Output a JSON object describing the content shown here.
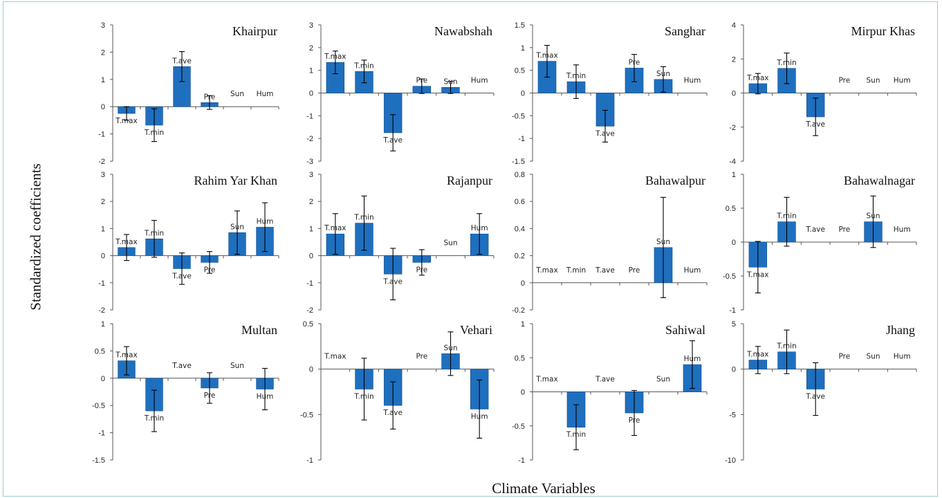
{
  "ylabel": "Standardized coefficients",
  "xlabel": "Climate Variables",
  "colors": {
    "bar": "#1f6fbf",
    "bar_edge": "#15508c",
    "axis": "#555555",
    "error": "#000000",
    "frame": "#8fd3cf"
  },
  "variables": [
    "T.max",
    "T.min",
    "T.ave",
    "Pre",
    "Sun",
    "Hum"
  ],
  "chart_data": [
    {
      "type": "bar",
      "title": "Khairpur",
      "categories": [
        "T.max",
        "T.min",
        "T.ave",
        "Pre",
        "Sun",
        "Hum"
      ],
      "values": [
        -0.25,
        -0.68,
        1.47,
        0.15,
        null,
        null
      ],
      "err": [
        0.25,
        0.6,
        0.55,
        0.25,
        null,
        null
      ],
      "ylim": [
        -2,
        3
      ],
      "yticks": [
        -2,
        -1,
        0,
        1,
        2,
        3
      ],
      "grid": false,
      "legend": "none"
    },
    {
      "type": "bar",
      "title": "Nawabshah",
      "categories": [
        "T.max",
        "T.min",
        "T.ave",
        "Pre",
        "Sun",
        "Hum"
      ],
      "values": [
        1.35,
        0.95,
        -1.75,
        0.3,
        0.25,
        null
      ],
      "err": [
        0.5,
        0.5,
        0.8,
        0.32,
        0.27,
        null
      ],
      "ylim": [
        -3,
        3
      ],
      "yticks": [
        -3,
        -2,
        -1,
        0,
        1,
        2,
        3
      ],
      "grid": false,
      "legend": "none"
    },
    {
      "type": "bar",
      "title": "Sanghar",
      "categories": [
        "T.max",
        "T.min",
        "T.ave",
        "Pre",
        "Sun",
        "Hum"
      ],
      "values": [
        0.7,
        0.25,
        -0.73,
        0.55,
        0.3,
        null
      ],
      "err": [
        0.35,
        0.37,
        0.35,
        0.3,
        0.28,
        null
      ],
      "ylim": [
        -1.5,
        1.5
      ],
      "yticks": [
        -1.5,
        -1,
        -0.5,
        0,
        0.5,
        1,
        1.5
      ],
      "grid": false,
      "legend": "none"
    },
    {
      "type": "bar",
      "title": "Mirpur Khas",
      "categories": [
        "T.max",
        "T.min",
        "T.ave",
        "Pre",
        "Sun",
        "Hum"
      ],
      "values": [
        0.55,
        1.45,
        -1.4,
        null,
        null,
        null
      ],
      "err": [
        0.6,
        0.9,
        1.1,
        null,
        null,
        null
      ],
      "ylim": [
        -4,
        4
      ],
      "yticks": [
        -4,
        -2,
        0,
        2,
        4
      ],
      "grid": false,
      "legend": "none"
    },
    {
      "type": "bar",
      "title": "Rahim Yar Khan",
      "categories": [
        "T.max",
        "T.min",
        "T.ave",
        "Pre",
        "Sun",
        "Hum"
      ],
      "values": [
        0.3,
        0.62,
        -0.48,
        -0.25,
        0.85,
        1.05
      ],
      "err": [
        0.48,
        0.68,
        0.58,
        0.4,
        0.8,
        0.9
      ],
      "ylim": [
        -2,
        3
      ],
      "yticks": [
        -2,
        -1,
        0,
        1,
        2,
        3
      ],
      "grid": false,
      "legend": "none"
    },
    {
      "type": "bar",
      "title": "Rajanpur",
      "categories": [
        "T.max",
        "T.min",
        "T.ave",
        "Pre",
        "Sun",
        "Hum"
      ],
      "values": [
        0.8,
        1.2,
        -0.68,
        -0.25,
        null,
        0.8
      ],
      "err": [
        0.75,
        1.0,
        0.95,
        0.47,
        null,
        0.75
      ],
      "ylim": [
        -2,
        3
      ],
      "yticks": [
        -2,
        -1,
        0,
        1,
        2,
        3
      ],
      "grid": false,
      "legend": "none"
    },
    {
      "type": "bar",
      "title": "Bahawalpur",
      "categories": [
        "T.max",
        "T.min",
        "T.ave",
        "Pre",
        "Sun",
        "Hum"
      ],
      "values": [
        null,
        null,
        null,
        null,
        0.26,
        null
      ],
      "err": [
        null,
        null,
        null,
        null,
        0.37,
        null
      ],
      "ylim": [
        -0.2,
        0.8
      ],
      "yticks": [
        -0.2,
        0,
        0.2,
        0.4,
        0.6,
        0.8
      ],
      "grid": false,
      "legend": "none"
    },
    {
      "type": "bar",
      "title": "Bahawalnagar",
      "categories": [
        "T.max",
        "T.min",
        "T.ave",
        "Pre",
        "Sun",
        "Hum"
      ],
      "values": [
        -0.37,
        0.3,
        null,
        null,
        0.3,
        null
      ],
      "err": [
        0.38,
        0.36,
        null,
        null,
        0.38,
        null
      ],
      "ylim": [
        -1,
        1
      ],
      "yticks": [
        -1,
        -0.5,
        0,
        0.5,
        1
      ],
      "grid": false,
      "legend": "none"
    },
    {
      "type": "bar",
      "title": "Multan",
      "categories": [
        "T.max",
        "T.min",
        "T.ave",
        "Pre",
        "Sun",
        "Hum"
      ],
      "values": [
        0.32,
        -0.6,
        null,
        -0.18,
        null,
        -0.2
      ],
      "err": [
        0.26,
        0.38,
        null,
        0.28,
        null,
        0.38
      ],
      "ylim": [
        -1.5,
        1
      ],
      "yticks": [
        -1.5,
        -1,
        -0.5,
        0,
        0.5,
        1
      ],
      "grid": false,
      "legend": "none"
    },
    {
      "type": "bar",
      "title": "Vehari",
      "categories": [
        "T.max",
        "T.min",
        "T.ave",
        "Pre",
        "Sun",
        "Hum"
      ],
      "values": [
        null,
        -0.22,
        -0.4,
        null,
        0.17,
        -0.44
      ],
      "err": [
        null,
        0.34,
        0.26,
        null,
        0.24,
        0.32
      ],
      "ylim": [
        -1,
        0.5
      ],
      "yticks": [
        -1,
        -0.5,
        0,
        0.5
      ],
      "grid": false,
      "legend": "none"
    },
    {
      "type": "bar",
      "title": "Sahiwal",
      "categories": [
        "T.max",
        "T.min",
        "T.ave",
        "Pre",
        "Sun",
        "Hum"
      ],
      "values": [
        null,
        -0.52,
        null,
        -0.31,
        null,
        0.4
      ],
      "err": [
        null,
        0.33,
        null,
        0.33,
        null,
        0.35
      ],
      "ylim": [
        -1,
        1
      ],
      "yticks": [
        -1,
        -0.5,
        0,
        0.5,
        1
      ],
      "grid": false,
      "legend": "none"
    },
    {
      "type": "bar",
      "title": "Jhang",
      "categories": [
        "T.max",
        "T.min",
        "T.ave",
        "Pre",
        "Sun",
        "Hum"
      ],
      "values": [
        1.0,
        1.9,
        -2.2,
        null,
        null,
        null
      ],
      "err": [
        1.5,
        2.4,
        2.9,
        null,
        null,
        null
      ],
      "ylim": [
        -10,
        5
      ],
      "yticks": [
        -10,
        -5,
        0,
        5
      ],
      "grid": false,
      "legend": "none"
    }
  ]
}
